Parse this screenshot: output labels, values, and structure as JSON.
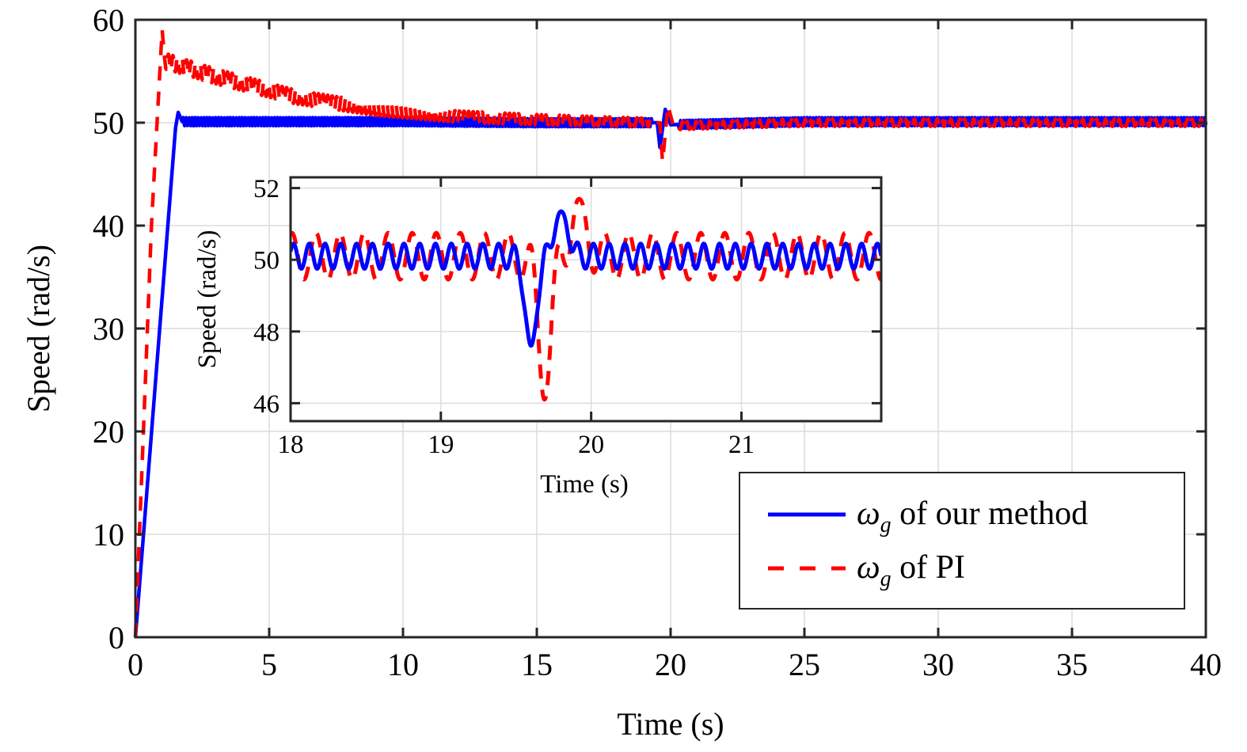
{
  "chart_data": [
    {
      "id": "main",
      "type": "line",
      "xlabel": "Time (s)",
      "ylabel": "Speed (rad/s)",
      "xlim": [
        0,
        40
      ],
      "ylim": [
        0,
        60
      ],
      "xticks": [
        0,
        5,
        10,
        15,
        20,
        25,
        30,
        35,
        40
      ],
      "yticks": [
        0,
        10,
        20,
        30,
        40,
        50,
        60
      ],
      "grid": true,
      "legend": {
        "placement": "bottom-right",
        "entries": [
          {
            "symbol": "ω",
            "subscript": "g",
            "text": " of our method",
            "color": "#0000ff",
            "style": "solid"
          },
          {
            "symbol": "ω",
            "subscript": "g",
            "text": " of PI",
            "color": "#ff0000",
            "style": "dashed"
          }
        ]
      },
      "series": [
        {
          "name": "ω_g of our method",
          "color": "#0000ff",
          "style": "solid",
          "description": "ramps 0→50 rad/s by ~1.6 s (peak ~51), then holds ~50 with ±0.4 ripple; dip to ~47.6 at ~19.6 s and overshoot ~51.3 at ~19.8 s",
          "points": [
            [
              0,
              0
            ],
            [
              1.5,
              49.5
            ],
            [
              1.6,
              51
            ],
            [
              1.75,
              50.1
            ],
            [
              5,
              50.1
            ],
            [
              10,
              50.1
            ],
            [
              15,
              50
            ],
            [
              19.5,
              50
            ],
            [
              19.6,
              47.6
            ],
            [
              19.8,
              51.3
            ],
            [
              20.0,
              49.8
            ],
            [
              25,
              50.1
            ],
            [
              30,
              50.1
            ],
            [
              35,
              50.1
            ],
            [
              40,
              50.1
            ]
          ],
          "ripple_amplitude": 0.4
        },
        {
          "name": "ω_g of PI",
          "color": "#ff0000",
          "style": "dashed",
          "description": "rises 0→59 rad/s by ~1.0 s, drops to ~56 then decays toward 50 by ~15 s with ±0.8 ripple; dip to ~46 at ~19.7 s and overshoot ~51.7 at ~19.9 s",
          "points": [
            [
              0,
              0
            ],
            [
              0.6,
              40
            ],
            [
              1.0,
              59
            ],
            [
              1.1,
              56
            ],
            [
              3,
              54.5
            ],
            [
              6,
              52.5
            ],
            [
              9,
              51.3
            ],
            [
              12,
              50.6
            ],
            [
              15,
              50.3
            ],
            [
              19.6,
              50
            ],
            [
              19.7,
              46.1
            ],
            [
              19.9,
              51.7
            ],
            [
              20.1,
              49.7
            ],
            [
              25,
              50
            ],
            [
              30,
              50
            ],
            [
              35,
              50
            ],
            [
              40,
              50
            ]
          ],
          "ripple_amplitude": 0.8
        }
      ]
    },
    {
      "id": "inset",
      "type": "line",
      "xlabel": "Time (s)",
      "ylabel": "Speed (rad/s)",
      "xlim": [
        18,
        21.93
      ],
      "ylim": [
        45.5,
        52.3
      ],
      "xticks": [
        18,
        19,
        20,
        21
      ],
      "yticks": [
        46,
        48,
        50,
        52
      ],
      "grid": true,
      "series": [
        {
          "name": "ω_g of our method (zoom)",
          "color": "#0000ff",
          "style": "solid",
          "baseline": 50.1,
          "ripple_amplitude": 0.35,
          "ripple_period_s": 0.105,
          "disturbance": {
            "dip_time": 19.6,
            "dip_value": 47.6,
            "peak_time": 19.8,
            "peak_value": 51.35
          }
        },
        {
          "name": "ω_g of PI (zoom)",
          "color": "#ff0000",
          "style": "dashed",
          "baseline": 50.1,
          "ripple_amplitude": 0.65,
          "ripple_period_s": 0.16,
          "disturbance": {
            "dip_time": 19.69,
            "dip_value": 46.1,
            "peak_time": 19.92,
            "peak_value": 51.7
          }
        }
      ]
    }
  ]
}
